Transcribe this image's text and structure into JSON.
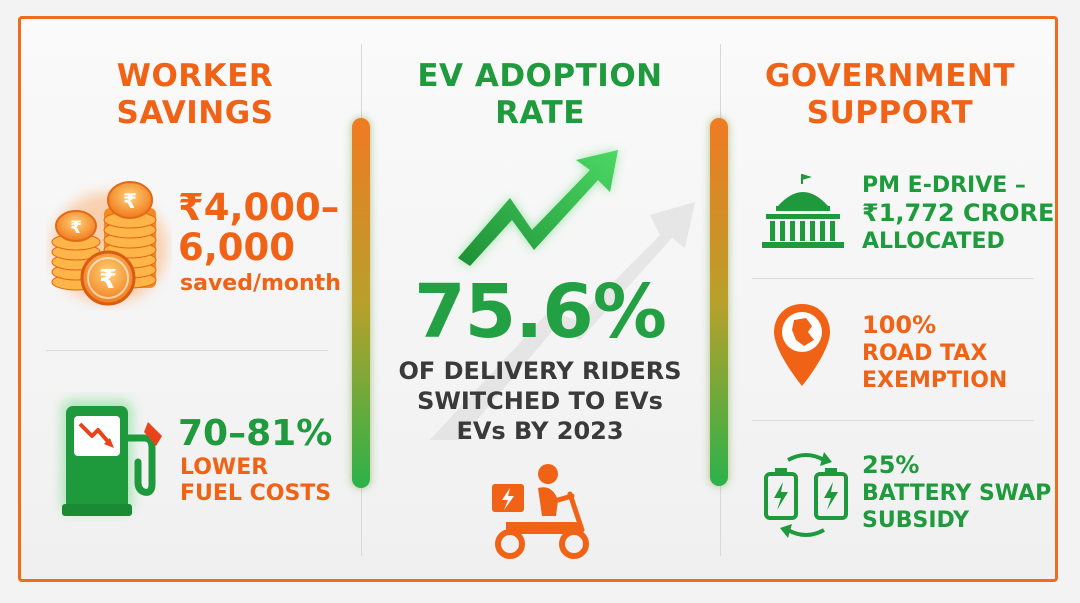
{
  "worker_savings": {
    "heading_line1": "WORKER",
    "heading_line2": "SAVINGS",
    "savings_line1": "₹4,000–",
    "savings_line2": "6,000",
    "savings_unit": "saved/month",
    "fuel_pct": "70–81%",
    "fuel_line1": "LOWER",
    "fuel_line2": "FUEL COSTS",
    "coin_symbol": "₹"
  },
  "ev_adoption": {
    "heading_line1": "EV ADOPTION",
    "heading_line2": "RATE",
    "rate": "75.6%",
    "desc_line1": "OF DELIVERY RIDERS",
    "desc_line2": "SWITCHED TO EVs",
    "desc_line3": "EVs BY 2023"
  },
  "government_support": {
    "heading_line1": "GOVERNMENT",
    "heading_line2": "SUPPORT",
    "items": [
      {
        "line1": "PM E-DRIVE –",
        "line2": "₹1,772 CRORE",
        "line3": "ALLOCATED",
        "icon": "parliament-icon"
      },
      {
        "line1": "100%",
        "line2": "ROAD TAX",
        "line3": "EXEMPTION",
        "icon": "map-pin-icon"
      },
      {
        "line1": "25%",
        "line2": "BATTERY SWAP",
        "line3": "SUBSIDY",
        "icon": "battery-swap-icon"
      }
    ]
  },
  "colors": {
    "orange": "#f06317",
    "green": "#1f9a3d",
    "border": "#f26a1b"
  }
}
